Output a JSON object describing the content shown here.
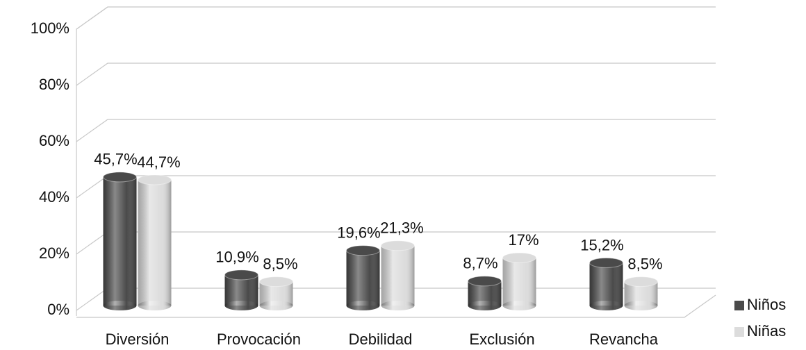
{
  "chart_data": {
    "type": "bar3d",
    "categories": [
      "Diversión",
      "Provocación",
      "Debilidad",
      "Exclusión",
      "Revancha"
    ],
    "series": [
      {
        "name": "Niños",
        "color": "#4a4a4a",
        "values": [
          45.7,
          10.9,
          19.6,
          8.7,
          15.2
        ],
        "value_labels": [
          "45,7%",
          "10,9%",
          "19,6%",
          "8,7%",
          "15,2%"
        ]
      },
      {
        "name": "Niñas",
        "color": "#dcdcdc",
        "values": [
          44.7,
          8.5,
          21.3,
          17,
          8.5
        ],
        "value_labels": [
          "44,7%",
          "8,5%",
          "21,3%",
          "17%",
          "8,5%"
        ]
      }
    ],
    "ylim": [
      0,
      100
    ],
    "yticks": [
      {
        "value": 0,
        "label": "0%"
      },
      {
        "value": 20,
        "label": "20%"
      },
      {
        "value": 40,
        "label": "40%"
      },
      {
        "value": 60,
        "label": "60%"
      },
      {
        "value": 80,
        "label": "80%"
      },
      {
        "value": 100,
        "label": "100%"
      }
    ],
    "grid": true,
    "legend": "right"
  }
}
